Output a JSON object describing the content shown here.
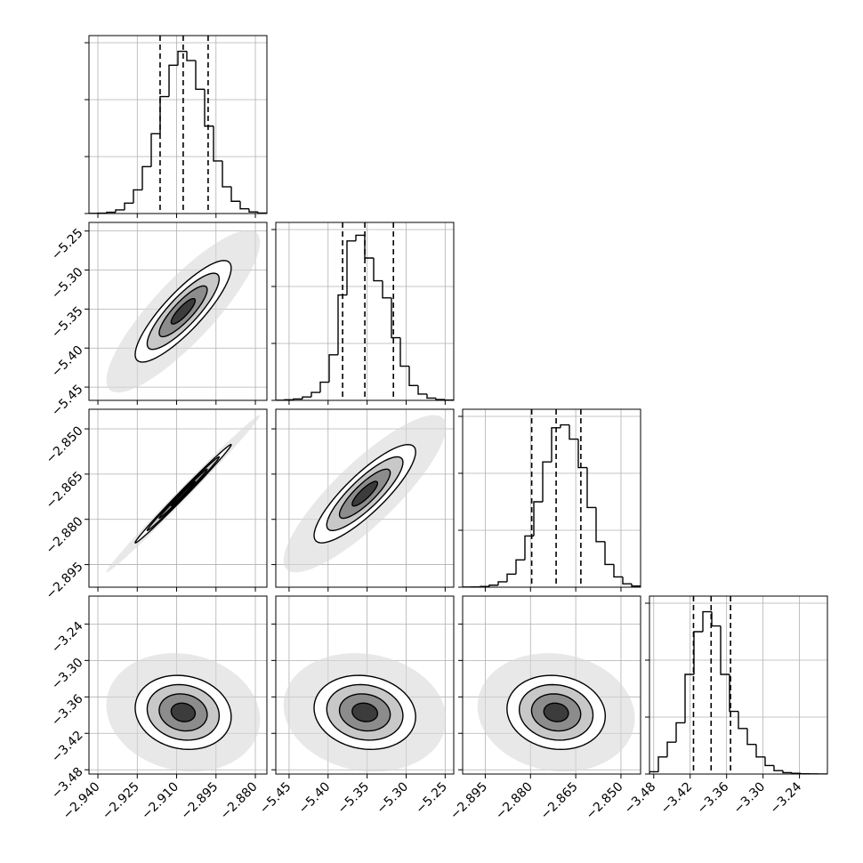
{
  "chart_data": {
    "type": "corner",
    "grid": true,
    "color": "#000000",
    "levels": [
      0.5,
      1,
      1.5,
      2
    ],
    "hist_ylim": [
      0,
      3125
    ],
    "hist_yticks": [
      0,
      1000,
      2000,
      3000
    ],
    "corr": [
      [
        0.85
      ],
      [
        0.995,
        0.85
      ],
      [
        -0.12,
        -0.12,
        -0.1
      ]
    ],
    "params": [
      {
        "lim": [
          -2.9434,
          -2.8756
        ],
        "ticks": [
          {
            "value": -2.94,
            "label": "−2.940"
          },
          {
            "value": -2.925,
            "label": "−2.925"
          },
          {
            "value": -2.91,
            "label": "−2.910"
          },
          {
            "value": -2.895,
            "label": "−2.895"
          },
          {
            "value": -2.88,
            "label": "−2.880"
          }
        ],
        "bins": [
          -2.9434,
          -2.94001,
          -2.93662,
          -2.93323,
          -2.92984,
          -2.92645,
          -2.92306,
          -2.91967,
          -2.91628,
          -2.91289,
          -2.9095,
          -2.90611,
          -2.90272,
          -2.89933,
          -2.89594,
          -2.89255,
          -2.88916,
          -2.88577,
          -2.88238,
          -2.87899,
          -2.8756
        ],
        "counts": [
          2,
          6,
          22,
          63,
          183,
          415,
          823,
          1402,
          2054,
          2604,
          2849,
          2686,
          2182,
          1535,
          923,
          470,
          215,
          83,
          28,
          8
        ],
        "quantiles": [
          -2.9163,
          -2.9075,
          -2.898
        ]
      },
      {
        "lim": [
          -5.467,
          -5.239
        ],
        "ticks": [
          {
            "value": -5.45,
            "label": "−5.45"
          },
          {
            "value": -5.4,
            "label": "−5.40"
          },
          {
            "value": -5.35,
            "label": "−5.35"
          },
          {
            "value": -5.3,
            "label": "−5.30"
          },
          {
            "value": -5.25,
            "label": "−5.25"
          }
        ],
        "bins": [
          -5.467,
          -5.4556,
          -5.4442,
          -5.4328,
          -5.4214,
          -5.41,
          -5.3986,
          -5.3872,
          -5.3758,
          -5.3644,
          -5.353,
          -5.3416,
          -5.3302,
          -5.3188,
          -5.3074,
          -5.296,
          -5.2846,
          -5.2732,
          -5.2618,
          -5.2504,
          -5.239
        ],
        "counts": [
          3,
          10,
          25,
          60,
          140,
          320,
          800,
          1850,
          2800,
          2900,
          2500,
          2100,
          1800,
          1100,
          600,
          260,
          110,
          40,
          15,
          5
        ],
        "quantiles": [
          -5.3814,
          -5.3529,
          -5.3163
        ]
      },
      {
        "lim": [
          -2.9025,
          -2.8435
        ],
        "ticks": [
          {
            "value": -2.895,
            "label": "−2.895"
          },
          {
            "value": -2.88,
            "label": "−2.880"
          },
          {
            "value": -2.865,
            "label": "−2.865"
          },
          {
            "value": -2.85,
            "label": "−2.850"
          }
        ],
        "bins": [
          -2.9025,
          -2.89955,
          -2.8966,
          -2.89365,
          -2.8907,
          -2.88775,
          -2.8848,
          -2.88185,
          -2.8789,
          -2.87595,
          -2.873,
          -2.87005,
          -2.8671,
          -2.86415,
          -2.8612,
          -2.85825,
          -2.8553,
          -2.85235,
          -2.8494,
          -2.84645,
          -2.8435
        ],
        "counts": [
          2,
          5,
          12,
          35,
          95,
          230,
          480,
          900,
          1500,
          2200,
          2800,
          2850,
          2600,
          2100,
          1400,
          800,
          400,
          180,
          60,
          20
        ],
        "quantiles": [
          -2.8796,
          -2.8715,
          -2.8633
        ]
      },
      {
        "lim": [
          -3.487,
          -3.194
        ],
        "ticks": [
          {
            "value": -3.48,
            "label": "−3.48"
          },
          {
            "value": -3.42,
            "label": "−3.42"
          },
          {
            "value": -3.36,
            "label": "−3.36"
          },
          {
            "value": -3.3,
            "label": "−3.30"
          },
          {
            "value": -3.24,
            "label": "−3.24"
          }
        ],
        "bins": [
          -3.487,
          -3.47235,
          -3.4577,
          -3.44305,
          -3.4284,
          -3.41375,
          -3.3991,
          -3.38445,
          -3.3698,
          -3.35515,
          -3.3405,
          -3.32585,
          -3.3112,
          -3.29655,
          -3.2819,
          -3.26725,
          -3.2526,
          -3.23795,
          -3.2233,
          -3.20865,
          -3.194
        ],
        "counts": [
          40,
          300,
          560,
          900,
          1750,
          2500,
          2850,
          2600,
          1750,
          1100,
          800,
          520,
          300,
          150,
          60,
          25,
          12,
          5,
          2,
          1
        ],
        "quantiles": [
          -3.4145,
          -3.3855,
          -3.3535
        ]
      }
    ]
  }
}
